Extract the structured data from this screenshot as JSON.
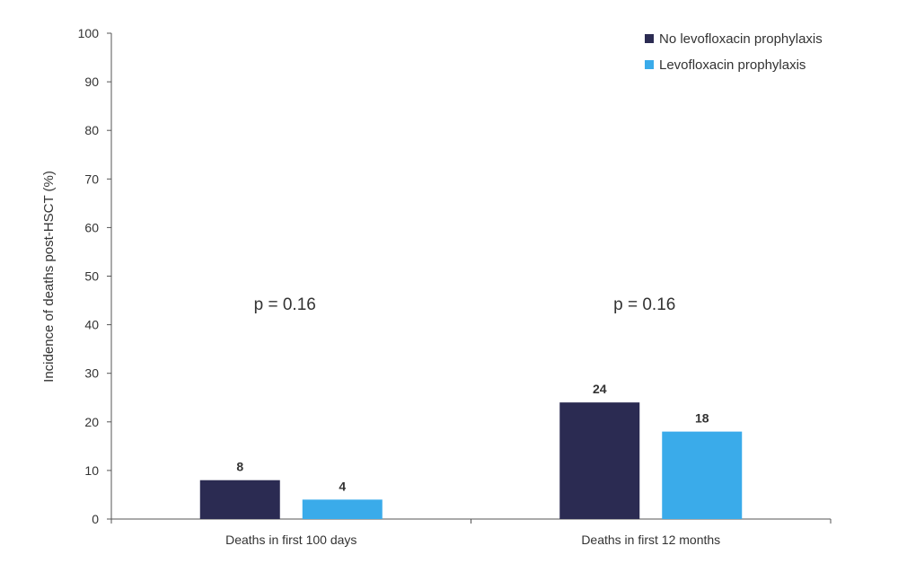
{
  "chart_data": {
    "type": "bar",
    "title": "",
    "xlabel": "",
    "ylabel": "Incidence of deaths post-HSCT (%)",
    "ylim": [
      0,
      100
    ],
    "yticks": [
      0,
      10,
      20,
      30,
      40,
      50,
      60,
      70,
      80,
      90,
      100
    ],
    "categories": [
      "Deaths in first 100 days",
      "Deaths in first 12 months"
    ],
    "series": [
      {
        "name": "No levofloxacin prophylaxis",
        "values": [
          8,
          24
        ],
        "color": "#2b2b52"
      },
      {
        "name": "Levofloxacin prophylaxis",
        "values": [
          4,
          18
        ],
        "color": "#3aabea"
      }
    ],
    "annotations": [
      "p = 0.16",
      "p = 0.16"
    ],
    "legend_position": "top-right",
    "grid": false
  }
}
